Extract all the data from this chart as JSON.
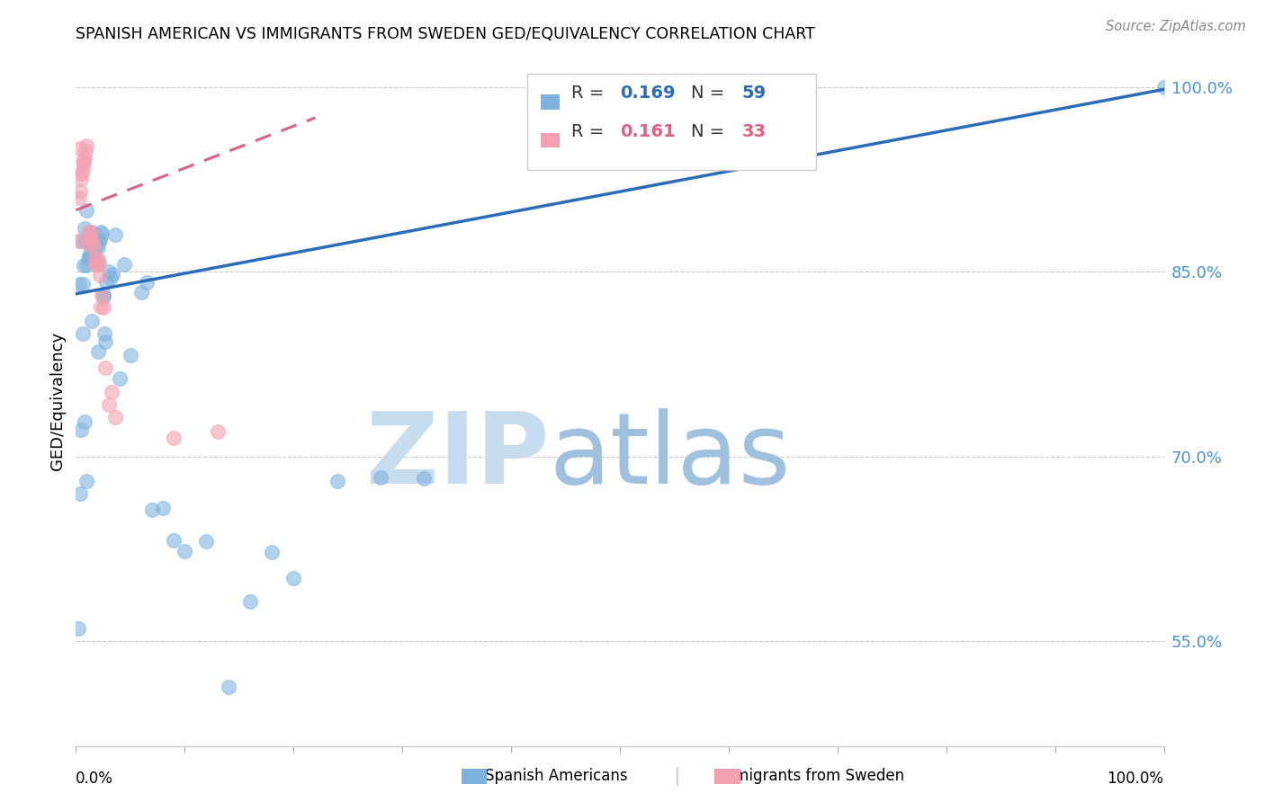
{
  "title": "SPANISH AMERICAN VS IMMIGRANTS FROM SWEDEN GED/EQUIVALENCY CORRELATION CHART",
  "source": "Source: ZipAtlas.com",
  "ylabel": "GED/Equivalency",
  "right_ytick_labels": [
    "55.0%",
    "70.0%",
    "85.0%",
    "100.0%"
  ],
  "right_ytick_vals": [
    0.55,
    0.7,
    0.85,
    1.0
  ],
  "legend_blue_R": "0.169",
  "legend_blue_N": "59",
  "legend_pink_R": "0.161",
  "legend_pink_N": "33",
  "blue_color": "#7EB3E0",
  "pink_color": "#F4A0B0",
  "blue_line_color": "#2B6CB8",
  "pink_line_color": "#E06080",
  "watermark_zip_color": "#C8DCF0",
  "watermark_atlas_color": "#A0C0E0",
  "blue_scatter_x": [
    0.002,
    0.003,
    0.004,
    0.005,
    0.006,
    0.007,
    0.008,
    0.009,
    0.01,
    0.011,
    0.012,
    0.013,
    0.014,
    0.015,
    0.016,
    0.017,
    0.018,
    0.019,
    0.02,
    0.021,
    0.022,
    0.023,
    0.024,
    0.025,
    0.026,
    0.027,
    0.028,
    0.03,
    0.032,
    0.034,
    0.036,
    0.04,
    0.044,
    0.05,
    0.06,
    0.065,
    0.07,
    0.08,
    0.09,
    0.1,
    0.12,
    0.14,
    0.16,
    0.18,
    0.2,
    0.24,
    0.28,
    0.32,
    0.006,
    0.01,
    0.015,
    0.02,
    0.025,
    0.015,
    0.02,
    0.005,
    0.008,
    0.01,
    1.0
  ],
  "blue_scatter_y": [
    0.56,
    0.84,
    0.67,
    0.875,
    0.84,
    0.855,
    0.885,
    0.875,
    0.9,
    0.86,
    0.863,
    0.862,
    0.87,
    0.882,
    0.865,
    0.86,
    0.87,
    0.872,
    0.87,
    0.875,
    0.876,
    0.882,
    0.881,
    0.832,
    0.8,
    0.793,
    0.842,
    0.85,
    0.845,
    0.848,
    0.88,
    0.763,
    0.856,
    0.782,
    0.833,
    0.841,
    0.657,
    0.658,
    0.632,
    0.623,
    0.631,
    0.513,
    0.582,
    0.622,
    0.601,
    0.68,
    0.683,
    0.682,
    0.8,
    0.855,
    0.81,
    0.785,
    0.83,
    0.876,
    0.858,
    0.722,
    0.728,
    0.68,
    1.0
  ],
  "pink_scatter_x": [
    0.002,
    0.003,
    0.004,
    0.005,
    0.006,
    0.007,
    0.008,
    0.009,
    0.01,
    0.011,
    0.012,
    0.013,
    0.014,
    0.015,
    0.016,
    0.017,
    0.018,
    0.019,
    0.02,
    0.021,
    0.022,
    0.023,
    0.024,
    0.025,
    0.027,
    0.03,
    0.033,
    0.036,
    0.004,
    0.005,
    0.006,
    0.09,
    0.13
  ],
  "pink_scatter_y": [
    0.875,
    0.91,
    0.915,
    0.925,
    0.932,
    0.938,
    0.942,
    0.948,
    0.952,
    0.882,
    0.872,
    0.877,
    0.882,
    0.876,
    0.871,
    0.861,
    0.856,
    0.856,
    0.86,
    0.857,
    0.847,
    0.822,
    0.831,
    0.821,
    0.772,
    0.742,
    0.752,
    0.732,
    0.95,
    0.93,
    0.94,
    0.715,
    0.72
  ],
  "blue_trendline_x": [
    0.0,
    1.0
  ],
  "blue_trendline_y": [
    0.832,
    0.998
  ],
  "pink_trendline_x": [
    0.0,
    0.22
  ],
  "pink_trendline_y": [
    0.9,
    0.975
  ],
  "xmin": 0.0,
  "xmax": 1.0,
  "ymin": 0.465,
  "ymax": 1.025
}
